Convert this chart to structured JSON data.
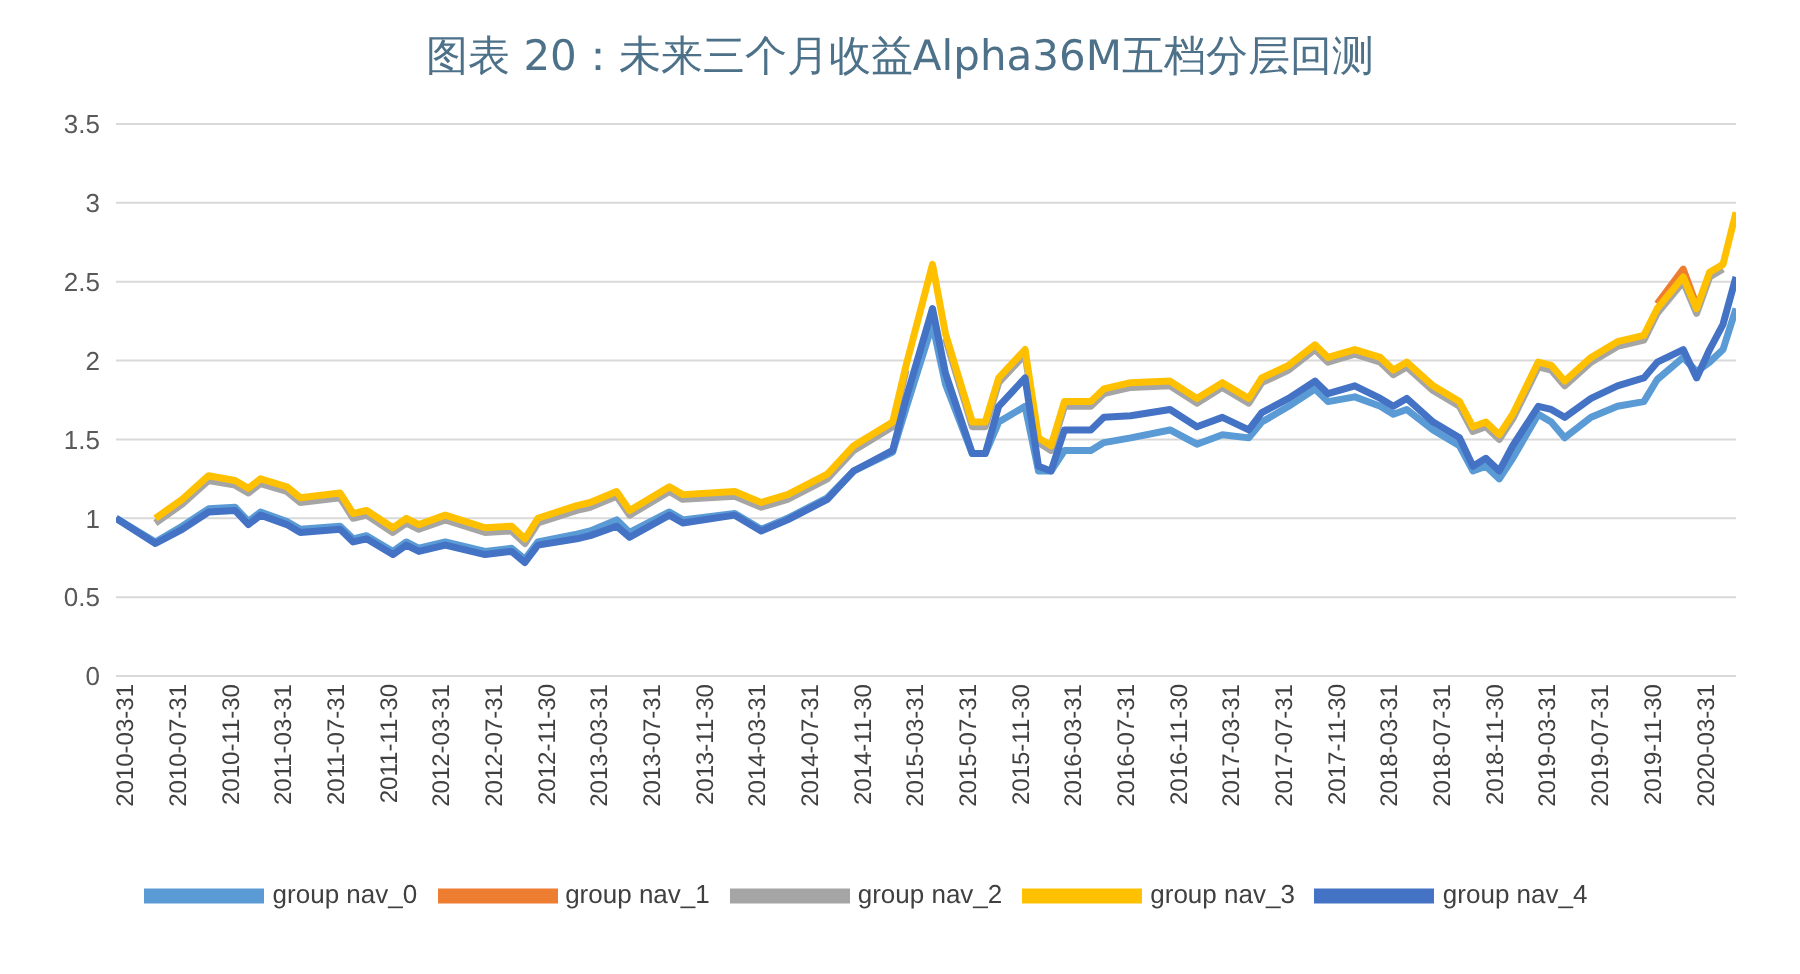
{
  "chart_data": {
    "type": "line",
    "title": "图表 20：未来三个月收益Alpha36M五档分层回测",
    "x": [
      "2010-03-31",
      "2010-06-30",
      "2010-08-31",
      "2010-10-31",
      "2010-12-31",
      "2011-01-31",
      "2011-02-28",
      "2011-04-30",
      "2011-05-31",
      "2011-08-31",
      "2011-09-30",
      "2011-10-31",
      "2011-12-31",
      "2012-01-31",
      "2012-02-29",
      "2012-04-30",
      "2012-07-31",
      "2012-09-30",
      "2012-10-31",
      "2012-11-30",
      "2013-02-28",
      "2013-03-31",
      "2013-05-31",
      "2013-06-30",
      "2013-09-30",
      "2013-10-31",
      "2014-02-28",
      "2014-04-30",
      "2014-06-30",
      "2014-09-30",
      "2014-11-30",
      "2015-02-28",
      "2015-03-31",
      "2015-05-31",
      "2015-06-30",
      "2015-08-31",
      "2015-09-30",
      "2015-10-31",
      "2015-12-31",
      "2016-01-31",
      "2016-02-29",
      "2016-03-31",
      "2016-05-31",
      "2016-06-30",
      "2016-08-31",
      "2016-11-30",
      "2017-01-31",
      "2017-03-31",
      "2017-05-31",
      "2017-06-30",
      "2017-08-31",
      "2017-10-31",
      "2017-11-30",
      "2018-01-31",
      "2018-03-31",
      "2018-04-30",
      "2018-05-31",
      "2018-07-31",
      "2018-09-30",
      "2018-10-31",
      "2018-11-30",
      "2018-12-31",
      "2019-01-31",
      "2019-03-31",
      "2019-04-30",
      "2019-05-31",
      "2019-07-31",
      "2019-09-30",
      "2019-11-30",
      "2019-12-31",
      "2020-02-29",
      "2020-03-31",
      "2020-04-30",
      "2020-05-31",
      "2020-06-30"
    ],
    "series": [
      {
        "name": "group nav_0",
        "color": "#5b9bd5",
        "values": [
          1.0,
          0.85,
          0.95,
          1.06,
          1.07,
          0.98,
          1.04,
          0.98,
          0.93,
          0.95,
          0.87,
          0.89,
          0.79,
          0.85,
          0.81,
          0.85,
          0.79,
          0.81,
          0.74,
          0.85,
          0.9,
          0.92,
          0.99,
          0.91,
          1.04,
          0.99,
          1.03,
          0.93,
          1.0,
          1.13,
          1.3,
          1.42,
          1.7,
          2.23,
          1.85,
          1.41,
          1.41,
          1.61,
          1.71,
          1.3,
          1.3,
          1.43,
          1.43,
          1.48,
          1.51,
          1.56,
          1.47,
          1.53,
          1.51,
          1.61,
          1.71,
          1.82,
          1.74,
          1.77,
          1.71,
          1.66,
          1.69,
          1.56,
          1.46,
          1.3,
          1.33,
          1.25,
          1.38,
          1.66,
          1.61,
          1.51,
          1.64,
          1.71,
          1.74,
          1.88,
          2.02,
          1.93,
          1.99,
          2.07,
          2.33
        ]
      },
      {
        "name": "group nav_1",
        "color": "#ed7d31",
        "values": [
          null,
          null,
          null,
          null,
          null,
          null,
          null,
          null,
          null,
          null,
          null,
          null,
          null,
          null,
          null,
          null,
          null,
          null,
          null,
          null,
          null,
          null,
          null,
          null,
          null,
          null,
          null,
          null,
          null,
          null,
          null,
          null,
          null,
          null,
          null,
          null,
          null,
          null,
          null,
          null,
          null,
          null,
          null,
          null,
          null,
          null,
          null,
          null,
          null,
          null,
          null,
          null,
          null,
          null,
          null,
          null,
          null,
          null,
          null,
          null,
          null,
          null,
          null,
          null,
          null,
          null,
          null,
          null,
          null,
          2.36,
          2.58,
          2.35,
          null,
          null,
          null
        ]
      },
      {
        "name": "group nav_2",
        "color": "#a5a5a5",
        "values": [
          null,
          0.97,
          1.09,
          1.24,
          1.21,
          1.16,
          1.22,
          1.17,
          1.1,
          1.13,
          1.0,
          1.02,
          0.91,
          0.97,
          0.93,
          0.99,
          0.91,
          0.92,
          0.84,
          0.97,
          1.05,
          1.07,
          1.14,
          1.02,
          1.17,
          1.12,
          1.14,
          1.07,
          1.12,
          1.25,
          1.43,
          1.58,
          1.94,
          null,
          2.14,
          1.58,
          1.58,
          1.86,
          2.04,
          1.48,
          1.43,
          1.71,
          1.71,
          1.79,
          1.83,
          1.84,
          1.73,
          1.83,
          1.73,
          1.86,
          1.94,
          2.07,
          1.99,
          2.04,
          1.99,
          1.91,
          1.96,
          1.81,
          1.71,
          1.55,
          1.58,
          1.5,
          1.63,
          1.96,
          1.94,
          1.84,
          1.99,
          2.09,
          2.13,
          2.3,
          2.5,
          2.3,
          2.53,
          2.58,
          null
        ]
      },
      {
        "name": "group nav_3",
        "color": "#ffc000",
        "values": [
          null,
          1.0,
          1.12,
          1.27,
          1.24,
          1.19,
          1.25,
          1.2,
          1.13,
          1.16,
          1.03,
          1.05,
          0.94,
          1.0,
          0.96,
          1.02,
          0.94,
          0.95,
          0.87,
          1.0,
          1.08,
          1.1,
          1.17,
          1.05,
          1.2,
          1.15,
          1.17,
          1.1,
          1.15,
          1.28,
          1.46,
          1.61,
          1.97,
          2.61,
          2.17,
          1.61,
          1.61,
          1.89,
          2.07,
          1.51,
          1.46,
          1.74,
          1.74,
          1.82,
          1.86,
          1.87,
          1.76,
          1.86,
          1.76,
          1.89,
          1.97,
          2.1,
          2.02,
          2.07,
          2.02,
          1.94,
          1.99,
          1.84,
          1.74,
          1.58,
          1.61,
          1.53,
          1.66,
          1.99,
          1.97,
          1.87,
          2.02,
          2.12,
          2.16,
          2.33,
          2.53,
          2.33,
          2.56,
          2.61,
          2.94
        ]
      },
      {
        "name": "group nav_4",
        "color": "#4472c4",
        "values": [
          1.0,
          0.84,
          0.93,
          1.04,
          1.05,
          0.96,
          1.02,
          0.96,
          0.91,
          0.93,
          0.85,
          0.87,
          0.77,
          0.83,
          0.79,
          0.83,
          0.77,
          0.79,
          0.72,
          0.83,
          0.87,
          0.89,
          0.95,
          0.88,
          1.02,
          0.97,
          1.02,
          0.92,
          0.99,
          1.12,
          1.3,
          1.43,
          1.76,
          2.33,
          1.92,
          1.41,
          1.41,
          1.71,
          1.89,
          1.33,
          1.3,
          1.56,
          1.56,
          1.64,
          1.65,
          1.69,
          1.58,
          1.64,
          1.56,
          1.67,
          1.76,
          1.87,
          1.79,
          1.84,
          1.76,
          1.71,
          1.76,
          1.61,
          1.51,
          1.33,
          1.38,
          1.3,
          1.46,
          1.71,
          1.69,
          1.64,
          1.76,
          1.84,
          1.89,
          1.99,
          2.07,
          1.89,
          2.07,
          2.23,
          2.53
        ]
      }
    ],
    "xlim": [
      "2010-03-31",
      "2020-06-30"
    ],
    "xticks": [
      "2010-03-31",
      "2010-07-31",
      "2010-11-30",
      "2011-03-31",
      "2011-07-31",
      "2011-11-30",
      "2012-03-31",
      "2012-07-31",
      "2012-11-30",
      "2013-03-31",
      "2013-07-31",
      "2013-11-30",
      "2014-03-31",
      "2014-07-31",
      "2014-11-30",
      "2015-03-31",
      "2015-07-31",
      "2015-11-30",
      "2016-03-31",
      "2016-07-31",
      "2016-11-30",
      "2017-03-31",
      "2017-07-31",
      "2017-11-30",
      "2018-03-31",
      "2018-07-31",
      "2018-11-30",
      "2019-03-31",
      "2019-07-31",
      "2019-11-30",
      "2020-03-31"
    ],
    "ylim": [
      0,
      3.5
    ],
    "yticks": [
      0,
      0.5,
      1,
      1.5,
      2,
      2.5,
      3,
      3.5
    ],
    "grid": "y",
    "legend": "bottom"
  }
}
